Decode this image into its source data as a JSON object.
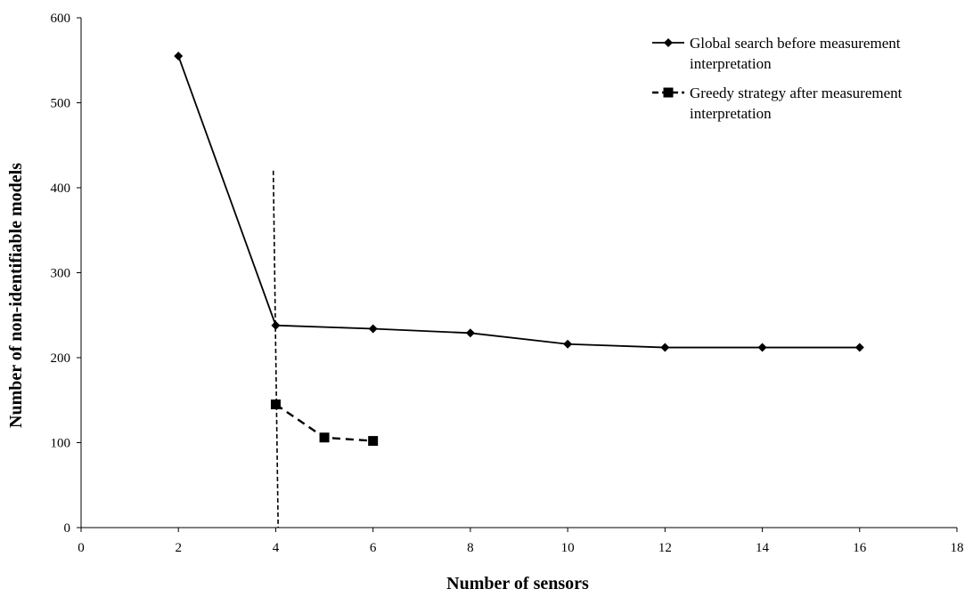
{
  "chart_data": {
    "type": "line",
    "title": "",
    "xlabel": "Number of sensors",
    "ylabel": "Number of non-identifiable models",
    "xlim": [
      0,
      18
    ],
    "ylim": [
      0,
      600
    ],
    "x_ticks": [
      0,
      2,
      4,
      6,
      8,
      10,
      12,
      14,
      16,
      18
    ],
    "y_ticks": [
      0,
      100,
      200,
      300,
      400,
      500,
      600
    ],
    "grid": false,
    "legend_position": "top-right",
    "series": [
      {
        "name_lines": [
          "Global search before measurement",
          "interpretation"
        ],
        "line_style": "solid",
        "marker": "diamond",
        "color": "#000000",
        "x": [
          2,
          4,
          6,
          8,
          10,
          12,
          14,
          16
        ],
        "y": [
          555,
          238,
          234,
          229,
          216,
          212,
          212,
          212
        ]
      },
      {
        "name_lines": [
          "Greedy strategy after measurement",
          "interpretation"
        ],
        "line_style": "dashed",
        "marker": "square",
        "color": "#000000",
        "x": [
          4,
          5,
          6
        ],
        "y": [
          145,
          106,
          102
        ]
      }
    ],
    "vertical_line": {
      "line_style": "dashed",
      "x": [
        3.95,
        4.05
      ],
      "y": [
        420,
        0
      ]
    }
  }
}
